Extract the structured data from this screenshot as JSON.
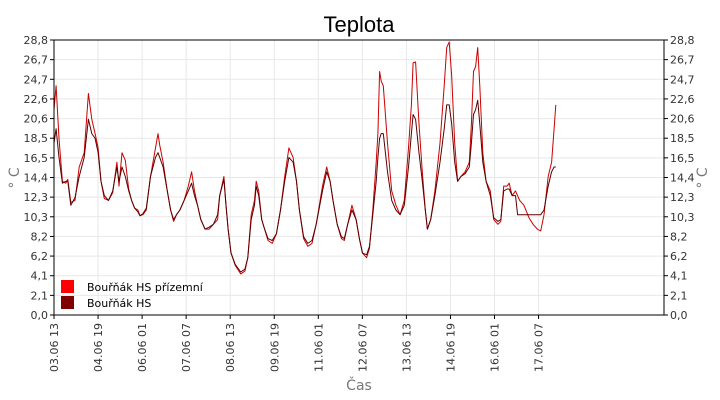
{
  "chart_data": {
    "type": "line",
    "title": "Teplota",
    "xlabel": "Čas",
    "ylabel": "° C",
    "ylabel_right": "° C",
    "ylim": [
      0,
      28.8
    ],
    "yticks": [
      "0,0",
      "2,1",
      "4,1",
      "6,2",
      "8,2",
      "10,3",
      "12,3",
      "14,4",
      "16,5",
      "18,5",
      "20,6",
      "22,6",
      "24,7",
      "26,7",
      "28,8"
    ],
    "xlim": [
      0,
      14.54
    ],
    "xticks": [
      {
        "label": "03.06 13",
        "x": 0.0
      },
      {
        "label": "04.06 19",
        "x": 1.05
      },
      {
        "label": "06.06 01",
        "x": 2.1
      },
      {
        "label": "07.06 07",
        "x": 3.15
      },
      {
        "label": "08.06 13",
        "x": 4.2
      },
      {
        "label": "09.06 19",
        "x": 5.25
      },
      {
        "label": "11.06 01",
        "x": 6.3
      },
      {
        "label": "12.06 07",
        "x": 7.35
      },
      {
        "label": "13.06 13",
        "x": 8.4
      },
      {
        "label": "14.06 19",
        "x": 9.45
      },
      {
        "label": "16.06 01",
        "x": 10.5
      },
      {
        "label": "17.06 07",
        "x": 11.55
      }
    ],
    "grid": true,
    "legend_position": "bottom-left",
    "series": [
      {
        "name": "Bouřňák HS přízemní",
        "color": "#ff0000",
        "line_color": "#cc0000",
        "points": [
          [
            0.0,
            21.5
          ],
          [
            0.05,
            24.0
          ],
          [
            0.12,
            18.5
          ],
          [
            0.2,
            14.0
          ],
          [
            0.28,
            13.8
          ],
          [
            0.33,
            14.2
          ],
          [
            0.4,
            11.8
          ],
          [
            0.5,
            12.0
          ],
          [
            0.6,
            15.5
          ],
          [
            0.72,
            17.0
          ],
          [
            0.82,
            23.2
          ],
          [
            0.9,
            20.5
          ],
          [
            0.98,
            19.0
          ],
          [
            1.05,
            17.5
          ],
          [
            1.12,
            14.0
          ],
          [
            1.2,
            12.2
          ],
          [
            1.3,
            12.0
          ],
          [
            1.4,
            12.8
          ],
          [
            1.5,
            16.0
          ],
          [
            1.55,
            13.5
          ],
          [
            1.62,
            17.0
          ],
          [
            1.7,
            16.2
          ],
          [
            1.78,
            13.2
          ],
          [
            1.85,
            12.0
          ],
          [
            1.92,
            11.2
          ],
          [
            2.0,
            11.0
          ],
          [
            2.05,
            10.4
          ],
          [
            2.12,
            10.5
          ],
          [
            2.2,
            11.0
          ],
          [
            2.3,
            14.5
          ],
          [
            2.42,
            17.5
          ],
          [
            2.48,
            19.0
          ],
          [
            2.52,
            17.8
          ],
          [
            2.6,
            16.0
          ],
          [
            2.7,
            13.0
          ],
          [
            2.78,
            11.0
          ],
          [
            2.85,
            9.8
          ],
          [
            2.92,
            10.5
          ],
          [
            3.0,
            11.0
          ],
          [
            3.1,
            12.0
          ],
          [
            3.2,
            13.5
          ],
          [
            3.28,
            15.0
          ],
          [
            3.35,
            13.0
          ],
          [
            3.42,
            11.5
          ],
          [
            3.5,
            10.0
          ],
          [
            3.6,
            9.0
          ],
          [
            3.7,
            9.0
          ],
          [
            3.8,
            9.5
          ],
          [
            3.9,
            10.0
          ],
          [
            3.95,
            12.5
          ],
          [
            4.05,
            14.5
          ],
          [
            4.1,
            11.5
          ],
          [
            4.15,
            9.0
          ],
          [
            4.22,
            6.5
          ],
          [
            4.32,
            5.2
          ],
          [
            4.45,
            4.3
          ],
          [
            4.55,
            4.6
          ],
          [
            4.62,
            6.0
          ],
          [
            4.7,
            10.5
          ],
          [
            4.78,
            12.0
          ],
          [
            4.82,
            14.0
          ],
          [
            4.88,
            13.0
          ],
          [
            4.95,
            10.0
          ],
          [
            5.02,
            9.0
          ],
          [
            5.1,
            7.8
          ],
          [
            5.2,
            7.5
          ],
          [
            5.3,
            8.5
          ],
          [
            5.4,
            11.0
          ],
          [
            5.5,
            14.5
          ],
          [
            5.6,
            17.5
          ],
          [
            5.7,
            16.5
          ],
          [
            5.78,
            14.0
          ],
          [
            5.85,
            11.0
          ],
          [
            5.95,
            8.0
          ],
          [
            6.05,
            7.2
          ],
          [
            6.15,
            7.5
          ],
          [
            6.25,
            9.5
          ],
          [
            6.4,
            13.5
          ],
          [
            6.5,
            15.5
          ],
          [
            6.58,
            14.0
          ],
          [
            6.65,
            12.0
          ],
          [
            6.75,
            9.5
          ],
          [
            6.85,
            8.0
          ],
          [
            6.92,
            7.8
          ],
          [
            7.0,
            9.5
          ],
          [
            7.1,
            11.5
          ],
          [
            7.2,
            10.0
          ],
          [
            7.28,
            8.0
          ],
          [
            7.35,
            6.5
          ],
          [
            7.45,
            6.0
          ],
          [
            7.52,
            7.0
          ],
          [
            7.6,
            11.0
          ],
          [
            7.68,
            16.0
          ],
          [
            7.72,
            19.0
          ],
          [
            7.76,
            25.5
          ],
          [
            7.8,
            24.5
          ],
          [
            7.85,
            24.0
          ],
          [
            7.95,
            18.0
          ],
          [
            8.05,
            13.0
          ],
          [
            8.15,
            11.5
          ],
          [
            8.25,
            10.5
          ],
          [
            8.35,
            12.0
          ],
          [
            8.45,
            17.5
          ],
          [
            8.52,
            22.0
          ],
          [
            8.56,
            26.4
          ],
          [
            8.62,
            26.5
          ],
          [
            8.7,
            20.0
          ],
          [
            8.78,
            15.0
          ],
          [
            8.85,
            11.0
          ],
          [
            8.9,
            9.0
          ],
          [
            8.98,
            10.0
          ],
          [
            9.08,
            13.0
          ],
          [
            9.2,
            18.0
          ],
          [
            9.3,
            24.0
          ],
          [
            9.36,
            28.0
          ],
          [
            9.42,
            28.6
          ],
          [
            9.48,
            25.0
          ],
          [
            9.55,
            18.0
          ],
          [
            9.62,
            14.0
          ],
          [
            9.7,
            14.5
          ],
          [
            9.8,
            15.0
          ],
          [
            9.9,
            16.0
          ],
          [
            9.95,
            20.0
          ],
          [
            10.0,
            25.5
          ],
          [
            10.05,
            26.0
          ],
          [
            10.1,
            28.0
          ],
          [
            10.15,
            24.0
          ],
          [
            10.22,
            17.0
          ],
          [
            10.3,
            14.0
          ],
          [
            10.4,
            13.0
          ],
          [
            10.48,
            10.0
          ],
          [
            10.58,
            9.5
          ],
          [
            10.65,
            9.8
          ],
          [
            10.72,
            13.5
          ],
          [
            10.8,
            13.5
          ],
          [
            10.85,
            13.8
          ],
          [
            10.92,
            12.5
          ],
          [
            11.0,
            13.0
          ],
          [
            11.1,
            12.0
          ],
          [
            11.2,
            11.5
          ],
          [
            11.32,
            10.2
          ],
          [
            11.42,
            9.5
          ],
          [
            11.52,
            9.0
          ],
          [
            11.6,
            8.8
          ],
          [
            11.68,
            10.5
          ],
          [
            11.78,
            14.5
          ],
          [
            11.86,
            16.0
          ],
          [
            11.92,
            19.5
          ],
          [
            11.96,
            22.0
          ]
        ]
      },
      {
        "name": "Bouřňák HS",
        "color": "#800000",
        "line_color": "#5a0000",
        "points": [
          [
            0.0,
            18.0
          ],
          [
            0.05,
            19.5
          ],
          [
            0.12,
            16.5
          ],
          [
            0.2,
            13.8
          ],
          [
            0.28,
            14.0
          ],
          [
            0.33,
            14.0
          ],
          [
            0.4,
            11.5
          ],
          [
            0.5,
            12.3
          ],
          [
            0.6,
            14.5
          ],
          [
            0.72,
            16.5
          ],
          [
            0.82,
            20.5
          ],
          [
            0.9,
            19.0
          ],
          [
            0.98,
            18.5
          ],
          [
            1.05,
            17.0
          ],
          [
            1.12,
            14.0
          ],
          [
            1.2,
            12.5
          ],
          [
            1.3,
            12.0
          ],
          [
            1.4,
            13.0
          ],
          [
            1.5,
            15.5
          ],
          [
            1.55,
            14.0
          ],
          [
            1.62,
            15.5
          ],
          [
            1.7,
            14.5
          ],
          [
            1.78,
            13.0
          ],
          [
            1.85,
            12.0
          ],
          [
            1.92,
            11.2
          ],
          [
            2.0,
            10.8
          ],
          [
            2.05,
            10.4
          ],
          [
            2.12,
            10.6
          ],
          [
            2.2,
            11.2
          ],
          [
            2.3,
            14.5
          ],
          [
            2.42,
            16.5
          ],
          [
            2.48,
            17.0
          ],
          [
            2.52,
            16.5
          ],
          [
            2.6,
            15.5
          ],
          [
            2.7,
            13.0
          ],
          [
            2.78,
            11.0
          ],
          [
            2.85,
            10.0
          ],
          [
            2.92,
            10.5
          ],
          [
            3.0,
            11.0
          ],
          [
            3.1,
            12.0
          ],
          [
            3.2,
            13.0
          ],
          [
            3.28,
            13.8
          ],
          [
            3.35,
            12.5
          ],
          [
            3.42,
            11.5
          ],
          [
            3.5,
            10.0
          ],
          [
            3.6,
            9.0
          ],
          [
            3.7,
            9.2
          ],
          [
            3.8,
            9.5
          ],
          [
            3.9,
            10.5
          ],
          [
            3.95,
            12.5
          ],
          [
            4.05,
            14.2
          ],
          [
            4.1,
            11.5
          ],
          [
            4.15,
            9.0
          ],
          [
            4.22,
            6.5
          ],
          [
            4.32,
            5.3
          ],
          [
            4.45,
            4.5
          ],
          [
            4.55,
            4.8
          ],
          [
            4.62,
            6.0
          ],
          [
            4.7,
            10.0
          ],
          [
            4.78,
            11.5
          ],
          [
            4.82,
            13.5
          ],
          [
            4.88,
            12.5
          ],
          [
            4.95,
            10.0
          ],
          [
            5.02,
            9.0
          ],
          [
            5.1,
            8.0
          ],
          [
            5.2,
            7.8
          ],
          [
            5.3,
            8.5
          ],
          [
            5.4,
            11.0
          ],
          [
            5.5,
            14.0
          ],
          [
            5.6,
            16.5
          ],
          [
            5.7,
            16.0
          ],
          [
            5.78,
            14.0
          ],
          [
            5.85,
            11.0
          ],
          [
            5.95,
            8.2
          ],
          [
            6.05,
            7.5
          ],
          [
            6.15,
            7.8
          ],
          [
            6.25,
            9.5
          ],
          [
            6.4,
            13.0
          ],
          [
            6.5,
            15.0
          ],
          [
            6.58,
            14.0
          ],
          [
            6.65,
            12.0
          ],
          [
            6.75,
            9.5
          ],
          [
            6.85,
            8.2
          ],
          [
            6.92,
            8.0
          ],
          [
            7.0,
            9.5
          ],
          [
            7.1,
            11.0
          ],
          [
            7.2,
            10.0
          ],
          [
            7.28,
            8.0
          ],
          [
            7.35,
            6.5
          ],
          [
            7.45,
            6.3
          ],
          [
            7.52,
            7.2
          ],
          [
            7.6,
            10.5
          ],
          [
            7.68,
            14.0
          ],
          [
            7.72,
            16.5
          ],
          [
            7.76,
            18.5
          ],
          [
            7.8,
            19.0
          ],
          [
            7.85,
            19.0
          ],
          [
            7.95,
            15.0
          ],
          [
            8.05,
            12.0
          ],
          [
            8.15,
            11.0
          ],
          [
            8.25,
            10.5
          ],
          [
            8.35,
            11.5
          ],
          [
            8.45,
            15.5
          ],
          [
            8.52,
            19.0
          ],
          [
            8.56,
            21.0
          ],
          [
            8.62,
            20.5
          ],
          [
            8.7,
            17.0
          ],
          [
            8.78,
            14.0
          ],
          [
            8.85,
            11.0
          ],
          [
            8.9,
            9.0
          ],
          [
            8.98,
            10.0
          ],
          [
            9.08,
            12.5
          ],
          [
            9.2,
            16.0
          ],
          [
            9.3,
            19.5
          ],
          [
            9.36,
            22.0
          ],
          [
            9.42,
            22.0
          ],
          [
            9.48,
            20.0
          ],
          [
            9.55,
            16.0
          ],
          [
            9.62,
            14.0
          ],
          [
            9.7,
            14.5
          ],
          [
            9.8,
            14.8
          ],
          [
            9.9,
            15.5
          ],
          [
            9.95,
            18.0
          ],
          [
            10.0,
            21.0
          ],
          [
            10.05,
            21.5
          ],
          [
            10.1,
            22.5
          ],
          [
            10.15,
            20.0
          ],
          [
            10.22,
            16.0
          ],
          [
            10.3,
            14.0
          ],
          [
            10.4,
            12.5
          ],
          [
            10.48,
            10.2
          ],
          [
            10.58,
            9.8
          ],
          [
            10.65,
            10.0
          ],
          [
            10.72,
            13.0
          ],
          [
            10.8,
            13.2
          ],
          [
            10.85,
            13.2
          ],
          [
            10.92,
            12.5
          ],
          [
            11.0,
            12.5
          ],
          [
            11.05,
            10.5
          ],
          [
            11.6,
            10.5
          ],
          [
            11.68,
            11.0
          ],
          [
            11.78,
            13.5
          ],
          [
            11.86,
            15.0
          ],
          [
            11.92,
            15.5
          ],
          [
            11.96,
            15.5
          ]
        ]
      }
    ]
  }
}
